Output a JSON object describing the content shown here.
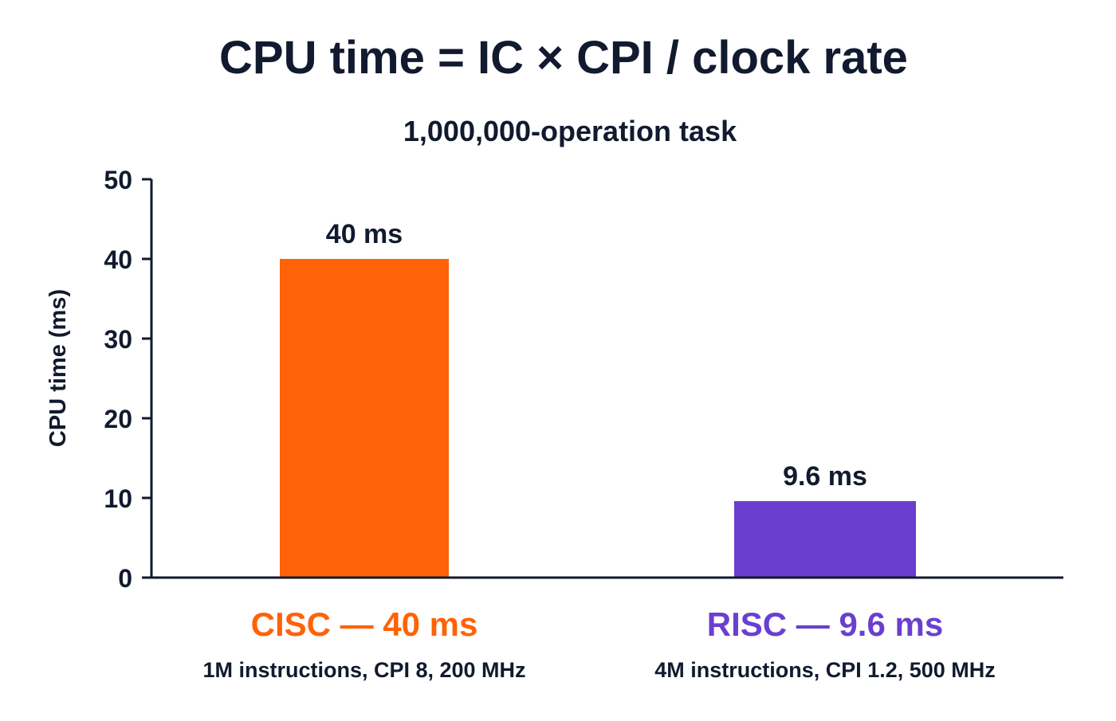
{
  "chart_data": {
    "type": "bar",
    "title": "CPU time = IC × CPI / clock rate",
    "subtitle": "1,000,000-operation task",
    "ylabel": "CPU time (ms)",
    "xlabel": "",
    "ylim": [
      0,
      50
    ],
    "yticks": [
      "0",
      "10",
      "20",
      "30",
      "40",
      "50"
    ],
    "categories": [
      "CISC — 40 ms",
      "RISC — 9.6 ms"
    ],
    "category_details": [
      "1M instructions, CPI 8, 200 MHz",
      "4M instructions, CPI 1.2, 500 MHz"
    ],
    "values": [
      40,
      9.6
    ],
    "data_labels": [
      "40 ms",
      "9.6 ms"
    ],
    "colors": [
      "#ff6207",
      "#6a3fcf"
    ],
    "grid": false,
    "legend": "none"
  }
}
